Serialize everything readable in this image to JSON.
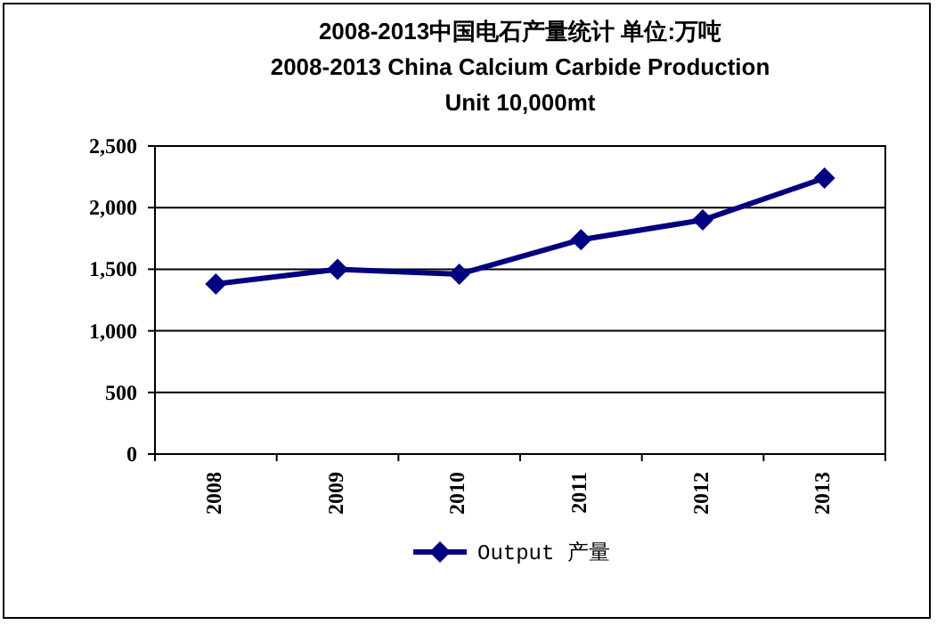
{
  "chart_data": {
    "type": "line",
    "title": "2008-2013中国电石产量统计 单位:万吨\n2008-2013 China Calcium Carbide Production\nUnit 10,000mt",
    "categories": [
      "2008",
      "2009",
      "2010",
      "2011",
      "2012",
      "2013"
    ],
    "series": [
      {
        "name": "Output 产量",
        "color": "#000080",
        "values": [
          1380,
          1500,
          1460,
          1740,
          1900,
          2240
        ]
      }
    ],
    "ylim": [
      0,
      2500
    ],
    "yticks": [
      0,
      500,
      {
        "value": 1000,
        "label": "1,000"
      },
      {
        "value": 1500,
        "label": "1,500"
      },
      {
        "value": 2000,
        "label": "2,000"
      },
      {
        "value": 2500,
        "label": "2,500"
      }
    ],
    "grid": "y",
    "legend": "bottom",
    "marker": "diamond",
    "line_style": "solid"
  }
}
